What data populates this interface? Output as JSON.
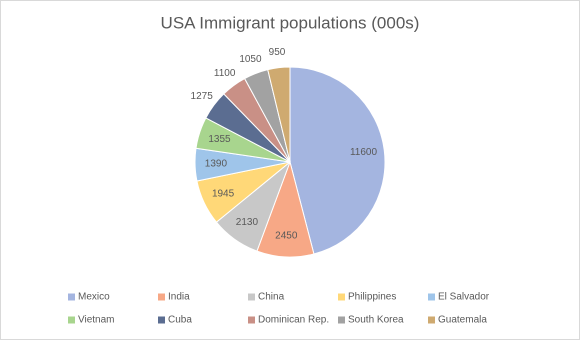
{
  "chart_data": {
    "type": "pie",
    "title": "USA Immigrant populations (000s)",
    "categories": [
      "Mexico",
      "India",
      "China",
      "Philippines",
      "El Salvador",
      "Vietnam",
      "Cuba",
      "Dominican Rep.",
      "South Korea",
      "Guatemala"
    ],
    "values": [
      11600,
      2450,
      2130,
      1945,
      1390,
      1355,
      1275,
      1100,
      1050,
      950
    ],
    "colors": [
      "#a4b5e0",
      "#f7a886",
      "#c8c8c8",
      "#ffd878",
      "#9fc5ea",
      "#a8d58e",
      "#5b6d91",
      "#c99086",
      "#a2a2a2",
      "#cfaa70"
    ],
    "legend": "bottom"
  }
}
